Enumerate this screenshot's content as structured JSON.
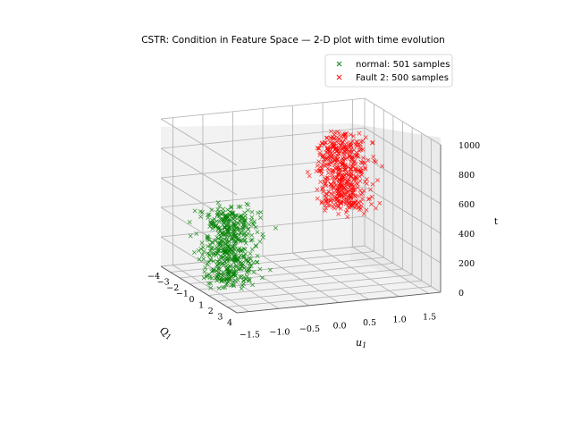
{
  "chart_data": {
    "type": "scatter",
    "projection": "3d",
    "title": "CSTR: Condition in Feature Space — 2-D plot with time evolution",
    "xlabel": "Q1",
    "ylabel": "u1",
    "zlabel": "t",
    "x_ticks": [
      "−4",
      "−3",
      "−2",
      "−1",
      "0",
      "1",
      "2",
      "3",
      "4"
    ],
    "y_ticks": [
      "−1.5",
      "−1.0",
      "−0.5",
      "0.0",
      "0.5",
      "1.0",
      "1.5"
    ],
    "z_ticks": [
      "0",
      "200",
      "400",
      "600",
      "800",
      "1000"
    ],
    "x_range": [
      -4,
      4
    ],
    "y_range": [
      -1.7,
      1.7
    ],
    "z_range": [
      0,
      1000
    ],
    "grid": true,
    "legend_position": "top-right",
    "marker": "x",
    "series": [
      {
        "name": "normal: 501 samples",
        "color": "#008000",
        "count": 501,
        "x_center": -0.5,
        "y_center": -1.1,
        "t_range": [
          0,
          500
        ]
      },
      {
        "name": "Fault 2: 500 samples",
        "color": "#ff0000",
        "count": 500,
        "x_center": 1.2,
        "y_center": 0.5,
        "t_range": [
          501,
          1000
        ]
      }
    ]
  }
}
